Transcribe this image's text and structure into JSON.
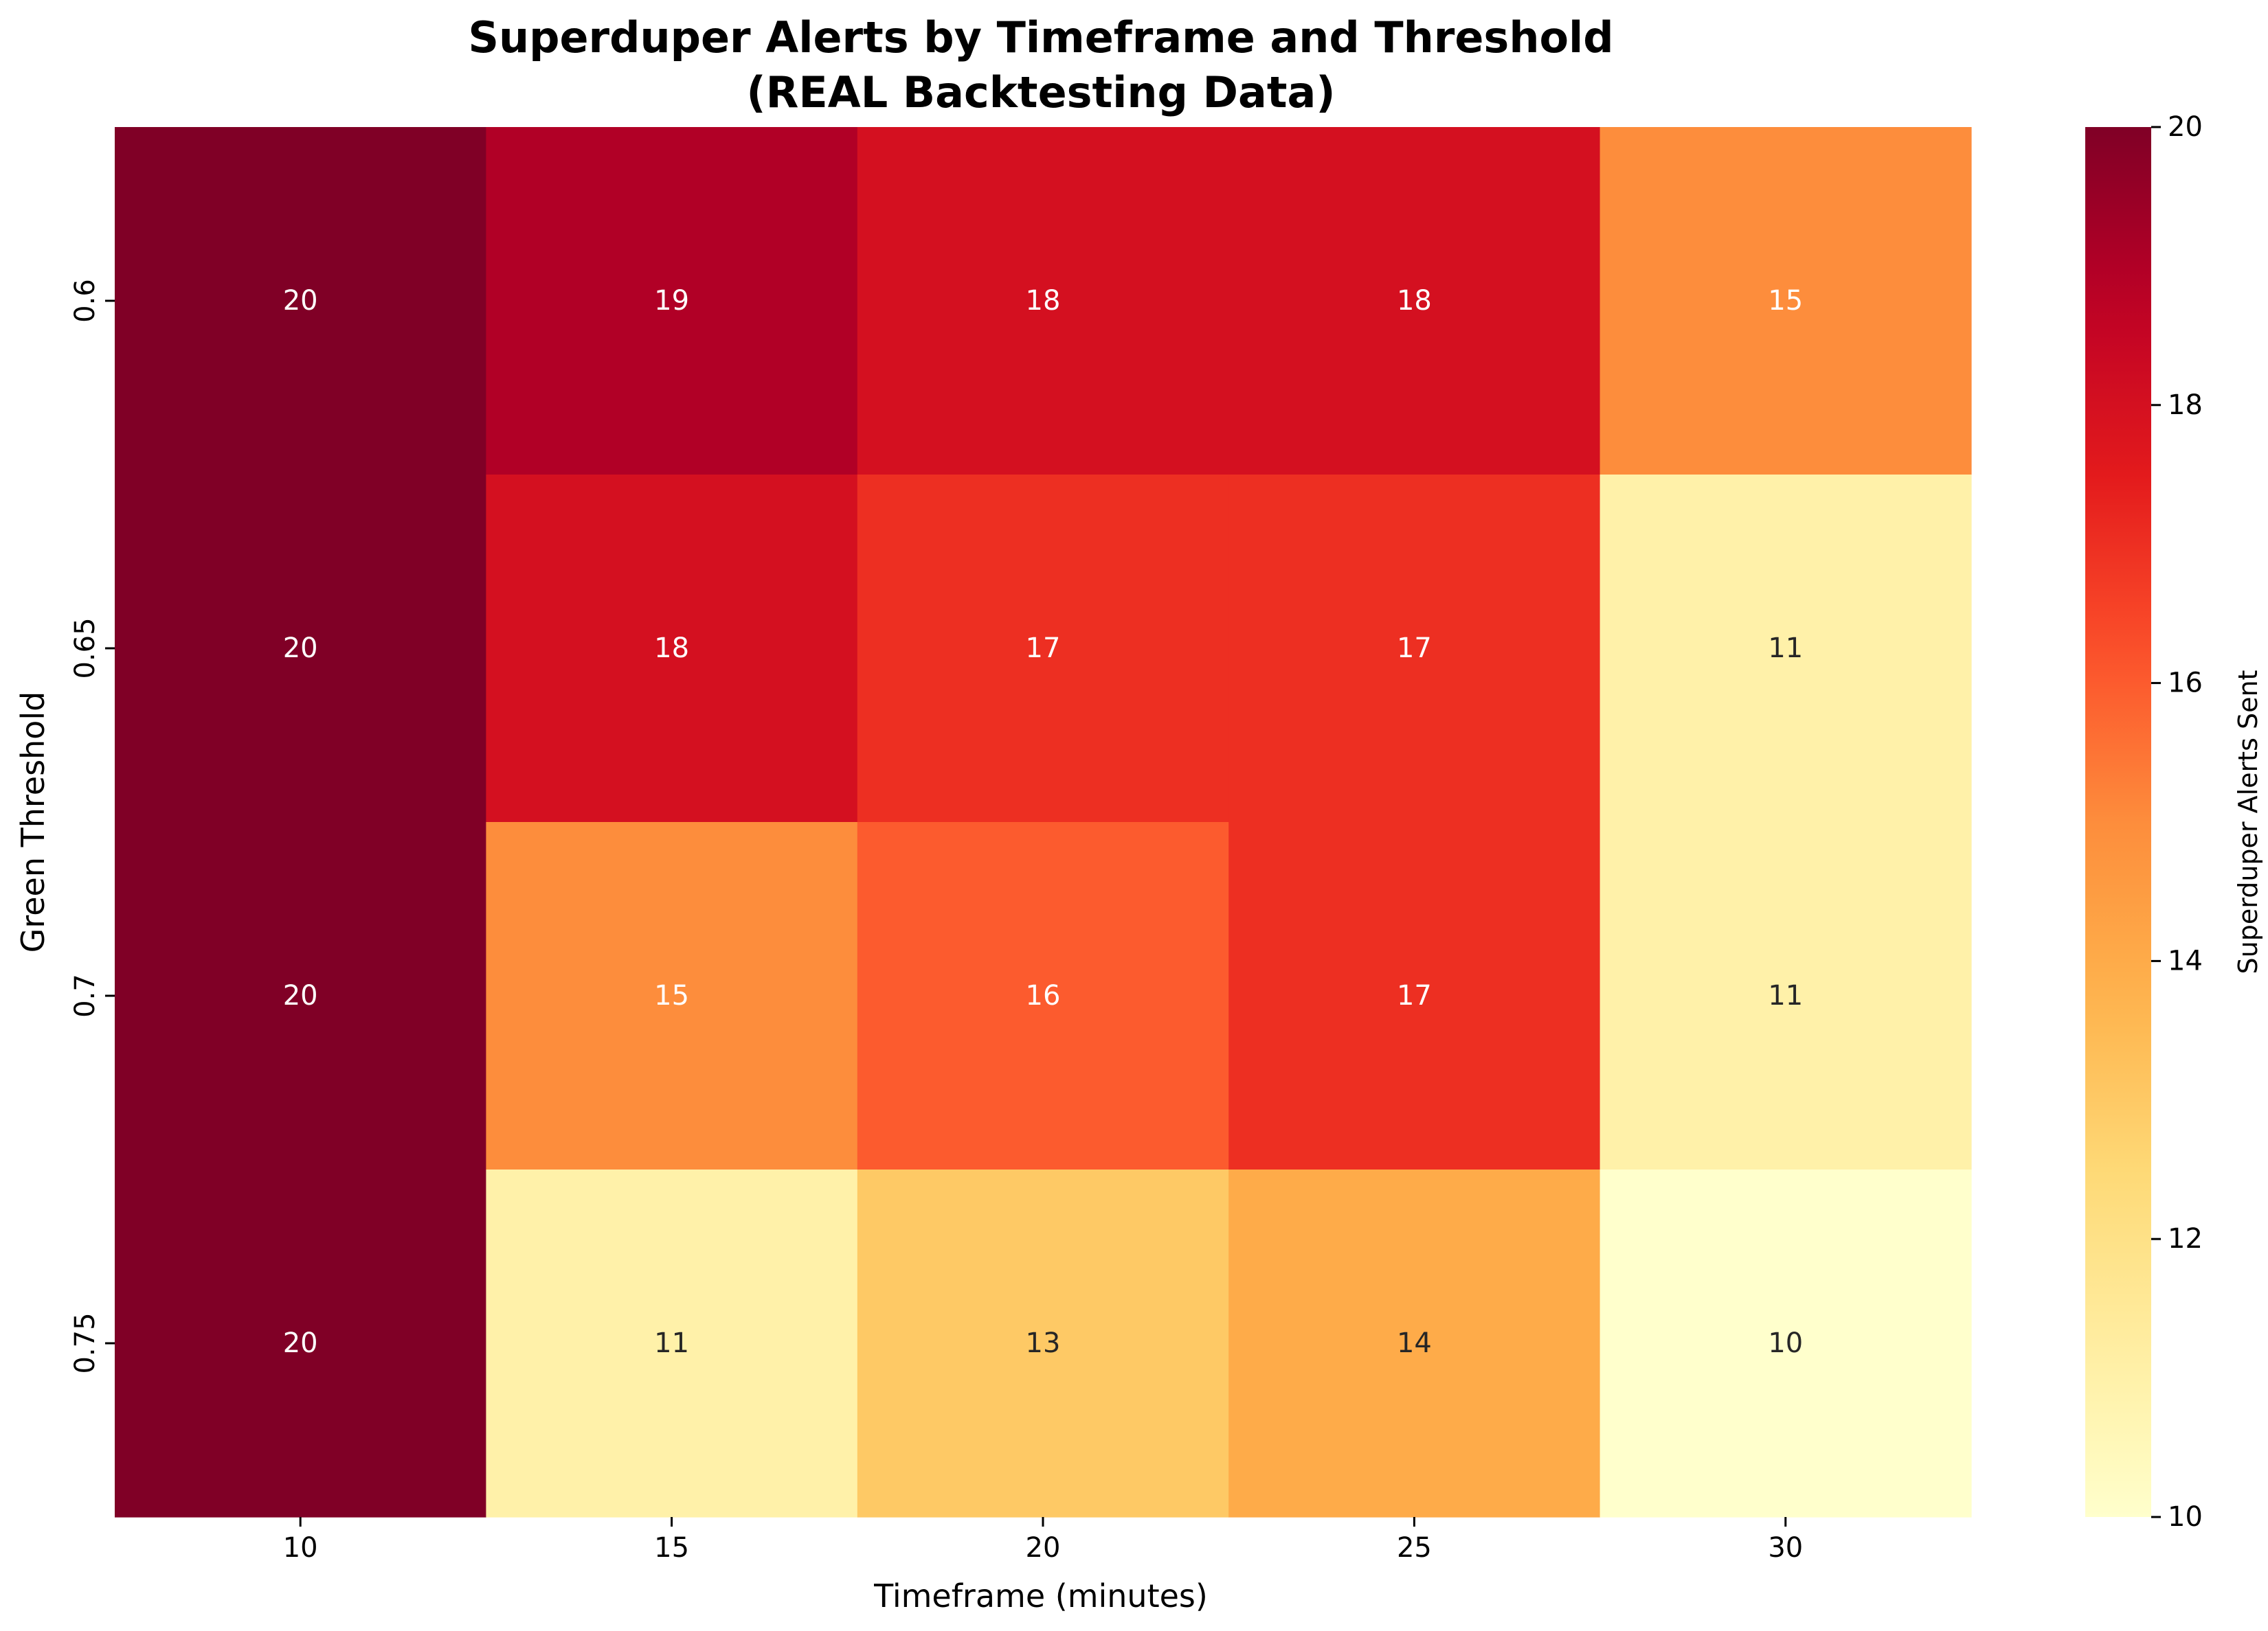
{
  "chart_data": {
    "type": "heatmap",
    "title_line1": "Superduper Alerts by Timeframe and Threshold",
    "title_line2": "(REAL Backtesting Data)",
    "xlabel": "Timeframe (minutes)",
    "ylabel": "Green Threshold",
    "x_categories": [
      "10",
      "15",
      "20",
      "25",
      "30"
    ],
    "y_categories": [
      "0.6",
      "0.65",
      "0.7",
      "0.75"
    ],
    "values": [
      [
        20,
        19,
        18,
        18,
        15
      ],
      [
        20,
        18,
        17,
        17,
        11
      ],
      [
        20,
        15,
        16,
        17,
        11
      ],
      [
        20,
        11,
        13,
        14,
        10
      ]
    ],
    "colormap": "YlOrRd",
    "vmin": 10,
    "vmax": 20,
    "colorbar": {
      "label": "Superduper Alerts Sent",
      "ticks": [
        "10",
        "12",
        "14",
        "16",
        "18",
        "20"
      ]
    },
    "annotation_colors": {
      "dark": "#262626",
      "light": "#ffffff"
    }
  }
}
